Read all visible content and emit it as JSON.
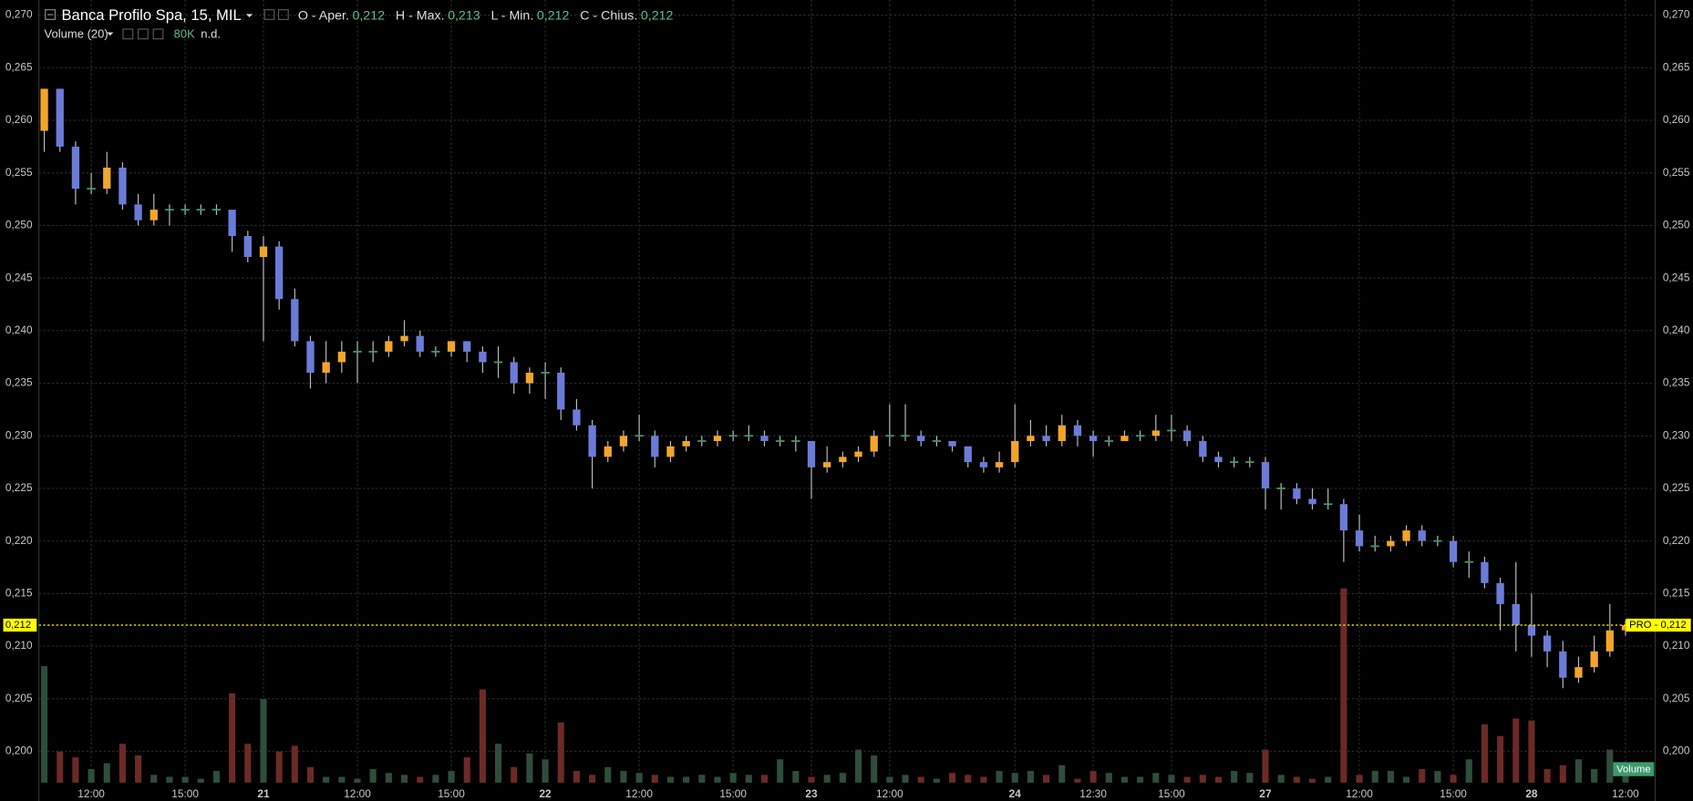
{
  "chart_data": {
    "type": "candlestick",
    "title": "Banca Profilo Spa, 15, MIL",
    "ohlc_legend": [
      {
        "label": "O - Aper.",
        "value": "0,212"
      },
      {
        "label": "H - Max.",
        "value": "0,213"
      },
      {
        "label": "L - Min.",
        "value": "0,212"
      },
      {
        "label": "C - Chius.",
        "value": "0,212"
      }
    ],
    "indicator": "Volume (20)",
    "indicator_value": "80K",
    "indicator_status": "n.d.",
    "volume_tag": "Volume",
    "last_price": {
      "value": 0.212,
      "label": "0,212"
    },
    "last_price_tag": "PRO - 0,212",
    "colors": {
      "up": "#f2a52a",
      "down": "#6c7bd8",
      "flat": "#3f9a6e",
      "volume_up": "#2f4d3b",
      "volume_down": "#6c2a26",
      "last_price": "#ffff00"
    },
    "grid": true,
    "ylim": [
      0.19702,
      0.27144
    ],
    "yticks": [
      {
        "value": 0.2,
        "label": "0,200"
      },
      {
        "value": 0.205,
        "label": "0,205"
      },
      {
        "value": 0.21,
        "label": "0,210"
      },
      {
        "value": 0.215,
        "label": "0,215"
      },
      {
        "value": 0.22,
        "label": "0,220"
      },
      {
        "value": 0.225,
        "label": "0,225"
      },
      {
        "value": 0.23,
        "label": "0,230"
      },
      {
        "value": 0.235,
        "label": "0,235"
      },
      {
        "value": 0.24,
        "label": "0,240"
      },
      {
        "value": 0.245,
        "label": "0,245"
      },
      {
        "value": 0.25,
        "label": "0,250"
      },
      {
        "value": 0.255,
        "label": "0,255"
      },
      {
        "value": 0.26,
        "label": "0,260"
      },
      {
        "value": 0.265,
        "label": "0,265"
      },
      {
        "value": 0.27,
        "label": "0,270"
      }
    ],
    "categories": [
      null,
      null,
      null,
      "12:00",
      null,
      null,
      null,
      null,
      null,
      "15:00",
      null,
      null,
      null,
      null,
      "21",
      null,
      null,
      null,
      null,
      null,
      "12:00",
      null,
      null,
      null,
      null,
      null,
      "15:00",
      null,
      null,
      null,
      null,
      null,
      "22",
      null,
      null,
      null,
      null,
      null,
      "12:00",
      null,
      null,
      null,
      null,
      null,
      "15:00",
      null,
      null,
      null,
      null,
      "23",
      null,
      null,
      null,
      null,
      "12:00",
      null,
      null,
      null,
      null,
      null,
      null,
      null,
      "24",
      null,
      null,
      null,
      null,
      "12:30",
      null,
      null,
      null,
      null,
      "15:00",
      null,
      null,
      null,
      null,
      null,
      "27",
      null,
      null,
      null,
      null,
      null,
      "12:00",
      null,
      null,
      null,
      null,
      null,
      "15:00",
      null,
      null,
      null,
      null,
      "28",
      null,
      null,
      null,
      null,
      null,
      "12:00"
    ],
    "candles": [
      [
        0.259,
        0.263,
        0.257,
        0.263
      ],
      [
        0.263,
        0.263,
        0.257,
        0.2575
      ],
      [
        0.2575,
        0.258,
        0.252,
        0.2535
      ],
      [
        0.2535,
        0.255,
        0.253,
        0.2535
      ],
      [
        0.2535,
        0.257,
        0.253,
        0.2555
      ],
      [
        0.2555,
        0.256,
        0.2515,
        0.252
      ],
      [
        0.252,
        0.253,
        0.25,
        0.2505
      ],
      [
        0.2505,
        0.253,
        0.25,
        0.2515
      ],
      [
        0.2515,
        0.252,
        0.25,
        0.2515
      ],
      [
        0.2515,
        0.252,
        0.251,
        0.2515
      ],
      [
        0.2515,
        0.252,
        0.251,
        0.2515
      ],
      [
        0.2515,
        0.252,
        0.251,
        0.2515
      ],
      [
        0.2515,
        0.2515,
        0.2475,
        0.249
      ],
      [
        0.249,
        0.2495,
        0.2465,
        0.247
      ],
      [
        0.247,
        0.249,
        0.239,
        0.248
      ],
      [
        0.248,
        0.2485,
        0.242,
        0.243
      ],
      [
        0.243,
        0.244,
        0.2385,
        0.239
      ],
      [
        0.239,
        0.2395,
        0.2345,
        0.236
      ],
      [
        0.236,
        0.239,
        0.235,
        0.237
      ],
      [
        0.237,
        0.239,
        0.236,
        0.238
      ],
      [
        0.238,
        0.239,
        0.235,
        0.238
      ],
      [
        0.238,
        0.239,
        0.237,
        0.238
      ],
      [
        0.238,
        0.2395,
        0.2375,
        0.239
      ],
      [
        0.239,
        0.241,
        0.2385,
        0.2395
      ],
      [
        0.2395,
        0.24,
        0.2375,
        0.238
      ],
      [
        0.238,
        0.2385,
        0.2375,
        0.238
      ],
      [
        0.238,
        0.239,
        0.2375,
        0.239
      ],
      [
        0.239,
        0.239,
        0.237,
        0.238
      ],
      [
        0.238,
        0.2385,
        0.236,
        0.237
      ],
      [
        0.237,
        0.2385,
        0.2355,
        0.237
      ],
      [
        0.237,
        0.2375,
        0.234,
        0.235
      ],
      [
        0.235,
        0.2365,
        0.234,
        0.236
      ],
      [
        0.236,
        0.237,
        0.2335,
        0.236
      ],
      [
        0.236,
        0.2365,
        0.2315,
        0.2325
      ],
      [
        0.2325,
        0.2335,
        0.2305,
        0.231
      ],
      [
        0.231,
        0.2315,
        0.225,
        0.228
      ],
      [
        0.228,
        0.2295,
        0.2275,
        0.229
      ],
      [
        0.229,
        0.2305,
        0.2285,
        0.23
      ],
      [
        0.23,
        0.232,
        0.2295,
        0.23
      ],
      [
        0.23,
        0.2305,
        0.227,
        0.228
      ],
      [
        0.228,
        0.2295,
        0.2275,
        0.229
      ],
      [
        0.229,
        0.23,
        0.2285,
        0.2295
      ],
      [
        0.2295,
        0.23,
        0.229,
        0.2295
      ],
      [
        0.2295,
        0.2305,
        0.229,
        0.23
      ],
      [
        0.23,
        0.2305,
        0.2295,
        0.23
      ],
      [
        0.23,
        0.231,
        0.2295,
        0.23
      ],
      [
        0.23,
        0.2305,
        0.229,
        0.2295
      ],
      [
        0.2295,
        0.23,
        0.229,
        0.2295
      ],
      [
        0.2295,
        0.23,
        0.2285,
        0.2295
      ],
      [
        0.2295,
        0.2295,
        0.224,
        0.227
      ],
      [
        0.227,
        0.229,
        0.2265,
        0.2275
      ],
      [
        0.2275,
        0.2285,
        0.227,
        0.228
      ],
      [
        0.228,
        0.229,
        0.2275,
        0.2285
      ],
      [
        0.2285,
        0.2305,
        0.228,
        0.23
      ],
      [
        0.23,
        0.233,
        0.229,
        0.23
      ],
      [
        0.23,
        0.233,
        0.2295,
        0.23
      ],
      [
        0.23,
        0.2305,
        0.229,
        0.2295
      ],
      [
        0.2295,
        0.23,
        0.229,
        0.2295
      ],
      [
        0.2295,
        0.2295,
        0.2285,
        0.229
      ],
      [
        0.229,
        0.229,
        0.227,
        0.2275
      ],
      [
        0.2275,
        0.228,
        0.2265,
        0.227
      ],
      [
        0.227,
        0.2285,
        0.2265,
        0.2275
      ],
      [
        0.2275,
        0.233,
        0.227,
        0.2295
      ],
      [
        0.2295,
        0.2315,
        0.229,
        0.23
      ],
      [
        0.23,
        0.231,
        0.229,
        0.2295
      ],
      [
        0.2295,
        0.232,
        0.229,
        0.231
      ],
      [
        0.231,
        0.2315,
        0.229,
        0.23
      ],
      [
        0.23,
        0.2305,
        0.228,
        0.2295
      ],
      [
        0.2295,
        0.23,
        0.229,
        0.2295
      ],
      [
        0.2295,
        0.2305,
        0.2295,
        0.23
      ],
      [
        0.23,
        0.2305,
        0.2295,
        0.23
      ],
      [
        0.23,
        0.232,
        0.2295,
        0.2305
      ],
      [
        0.2305,
        0.232,
        0.2295,
        0.2305
      ],
      [
        0.2305,
        0.231,
        0.229,
        0.2295
      ],
      [
        0.2295,
        0.23,
        0.2275,
        0.228
      ],
      [
        0.228,
        0.2285,
        0.227,
        0.2275
      ],
      [
        0.2275,
        0.228,
        0.227,
        0.2275
      ],
      [
        0.2275,
        0.228,
        0.227,
        0.2275
      ],
      [
        0.2275,
        0.228,
        0.223,
        0.225
      ],
      [
        0.225,
        0.2255,
        0.223,
        0.225
      ],
      [
        0.225,
        0.2255,
        0.2235,
        0.224
      ],
      [
        0.224,
        0.225,
        0.223,
        0.2235
      ],
      [
        0.2235,
        0.225,
        0.223,
        0.2235
      ],
      [
        0.2235,
        0.224,
        0.218,
        0.221
      ],
      [
        0.221,
        0.2225,
        0.219,
        0.2195
      ],
      [
        0.2195,
        0.2205,
        0.219,
        0.2195
      ],
      [
        0.2195,
        0.2205,
        0.219,
        0.22
      ],
      [
        0.22,
        0.2215,
        0.2195,
        0.221
      ],
      [
        0.221,
        0.2215,
        0.2195,
        0.22
      ],
      [
        0.22,
        0.2205,
        0.2195,
        0.22
      ],
      [
        0.22,
        0.2205,
        0.2175,
        0.218
      ],
      [
        0.218,
        0.219,
        0.2165,
        0.218
      ],
      [
        0.218,
        0.2185,
        0.2155,
        0.216
      ],
      [
        0.216,
        0.2165,
        0.2115,
        0.214
      ],
      [
        0.214,
        0.218,
        0.2095,
        0.212
      ],
      [
        0.212,
        0.215,
        0.209,
        0.211
      ],
      [
        0.211,
        0.2115,
        0.208,
        0.2095
      ],
      [
        0.2095,
        0.2105,
        0.206,
        0.207
      ],
      [
        0.207,
        0.209,
        0.2065,
        0.208
      ],
      [
        0.208,
        0.211,
        0.2075,
        0.2095
      ],
      [
        0.2095,
        0.214,
        0.209,
        0.2115
      ],
      [
        0.2115,
        0.2125,
        0.211,
        0.212
      ]
    ],
    "volume": [
      600,
      160,
      130,
      70,
      100,
      200,
      140,
      40,
      30,
      30,
      20,
      60,
      460,
      200,
      430,
      160,
      190,
      80,
      30,
      30,
      20,
      70,
      50,
      40,
      30,
      40,
      60,
      130,
      480,
      200,
      80,
      150,
      120,
      310,
      60,
      40,
      80,
      60,
      50,
      40,
      30,
      30,
      40,
      30,
      50,
      40,
      40,
      120,
      60,
      30,
      40,
      50,
      170,
      140,
      30,
      40,
      30,
      20,
      50,
      40,
      30,
      60,
      50,
      60,
      40,
      90,
      20,
      60,
      50,
      30,
      30,
      50,
      40,
      30,
      40,
      30,
      60,
      50,
      170,
      40,
      30,
      20,
      30,
      1000,
      40,
      60,
      60,
      30,
      70,
      60,
      40,
      120,
      300,
      240,
      330,
      320,
      70,
      90,
      120,
      70,
      170,
      50
    ]
  }
}
